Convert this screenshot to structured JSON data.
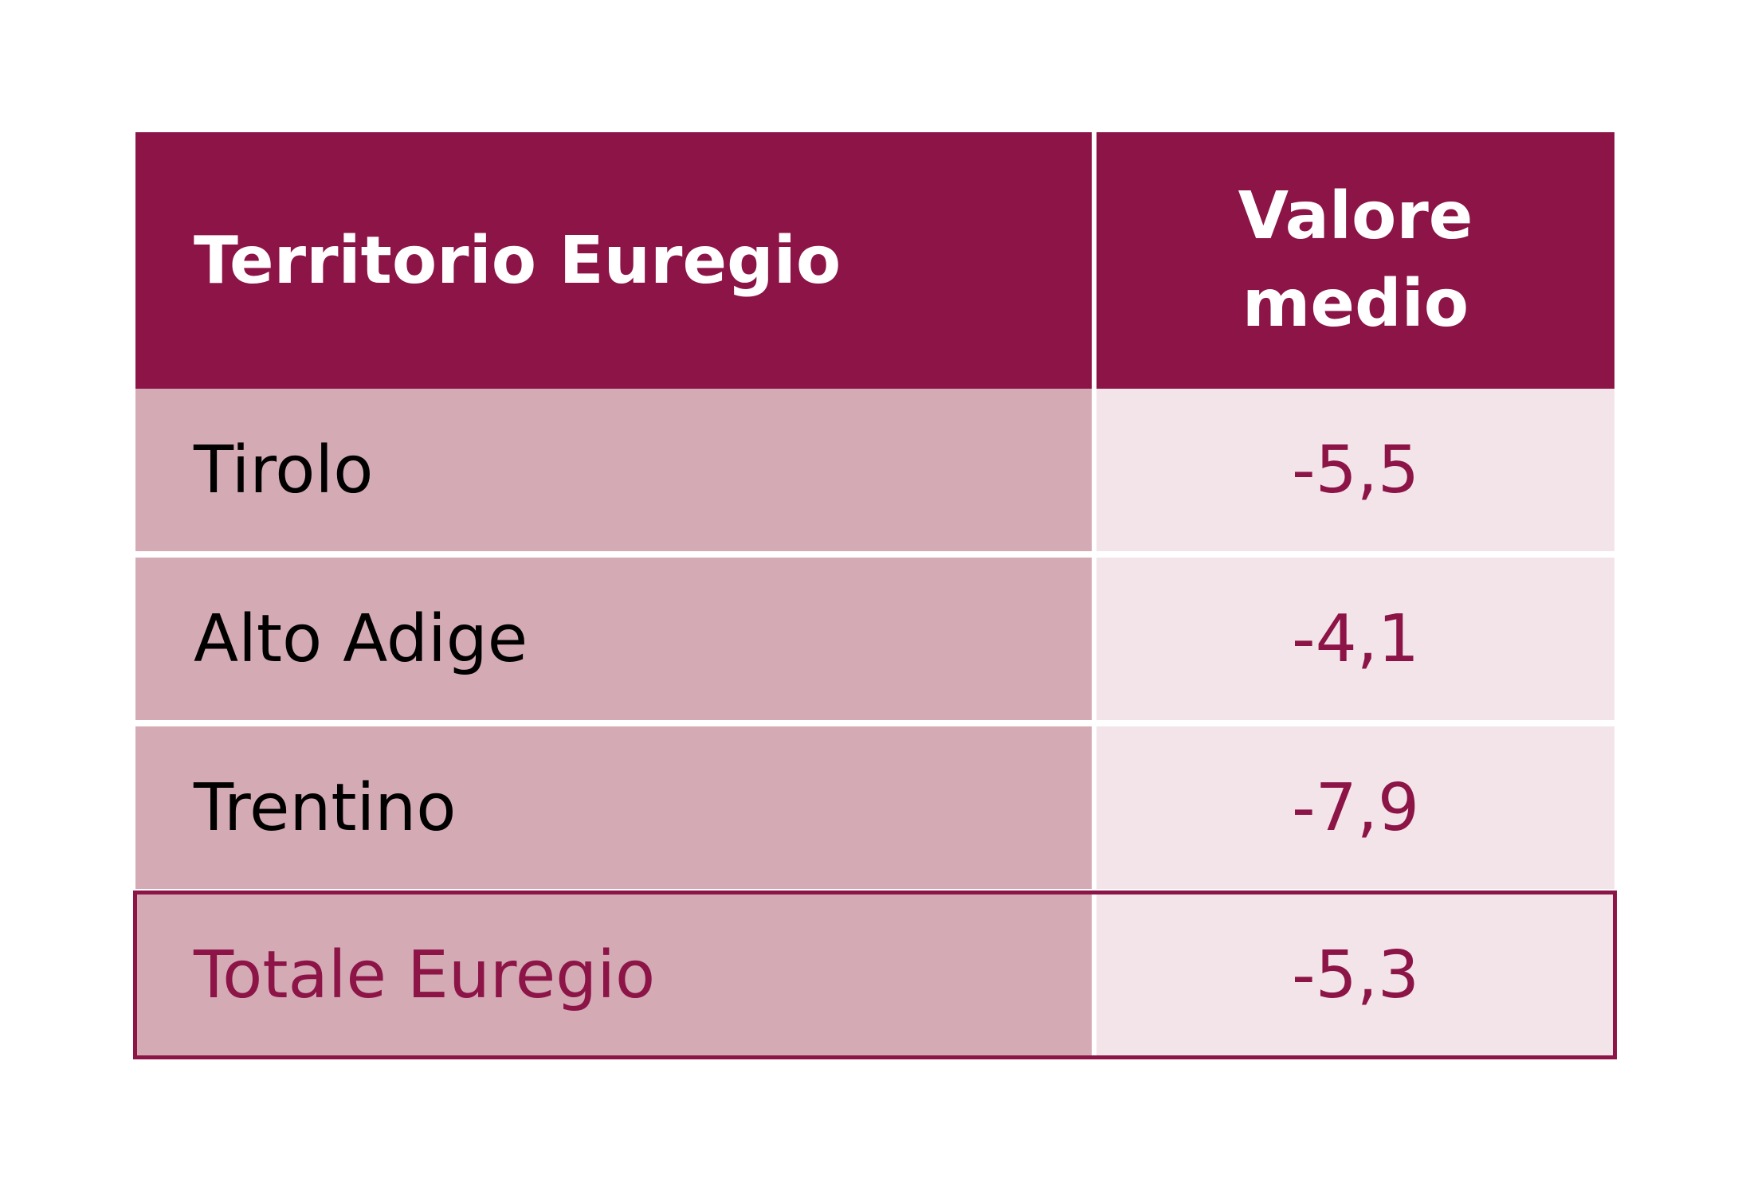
{
  "chart_data": {
    "type": "table",
    "columns": [
      "Territorio Euregio",
      [
        "Valore",
        "medio"
      ]
    ],
    "rows": [
      {
        "label": "Tirolo",
        "value": "-5,5"
      },
      {
        "label": "Alto Adige",
        "value": "-4,1"
      },
      {
        "label": "Trentino",
        "value": "-7,9"
      },
      {
        "label": "Totale Euregio",
        "value": "-5,3",
        "highlight": true
      }
    ]
  },
  "colors": {
    "header_bg": "#8c1446",
    "label_bg": "#d4aab5",
    "value_bg": "#f2e4e8",
    "accent_text": "#8c1446"
  }
}
